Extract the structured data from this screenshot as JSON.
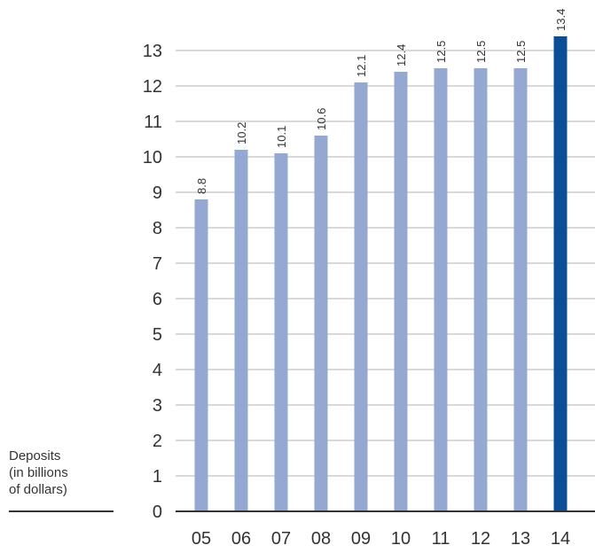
{
  "chart_data": {
    "type": "bar",
    "title": "",
    "xlabel": "",
    "ylabel_lines": [
      "Deposits",
      "(in billions",
      "of dollars)"
    ],
    "categories": [
      "05",
      "06",
      "07",
      "08",
      "09",
      "10",
      "11",
      "12",
      "13",
      "14"
    ],
    "values": [
      8.8,
      10.2,
      10.1,
      10.6,
      12.1,
      12.4,
      12.5,
      12.5,
      12.5,
      13.4
    ],
    "data_labels": [
      "8.8",
      "10.2",
      "10.1",
      "10.6",
      "12.1",
      "12.4",
      "12.5",
      "12.5",
      "12.5",
      "13.4"
    ],
    "y_ticks": [
      "0",
      "1",
      "2",
      "3",
      "4",
      "5",
      "6",
      "7",
      "8",
      "9",
      "10",
      "11",
      "12",
      "13"
    ],
    "ylim": [
      0,
      13
    ],
    "grid": true,
    "colors": {
      "bar": "#95a8d2",
      "highlight": "#0b4e96",
      "grid": "#b3b3b3",
      "axis": "#333333",
      "text": "#333333"
    },
    "highlight_index": 9
  }
}
